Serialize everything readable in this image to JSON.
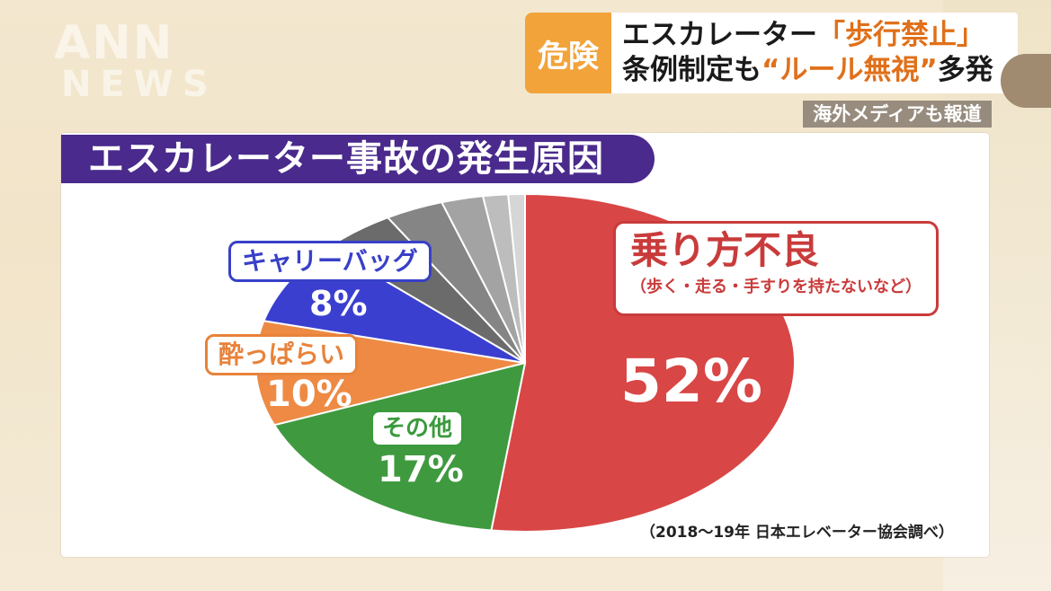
{
  "watermark": {
    "line1": "ANN",
    "line2": "NEWS"
  },
  "headline": {
    "tag": "危険",
    "line1_pre": "エスカレーター",
    "line1_accent": "「歩行禁止」",
    "line2_pre": "条例制定も",
    "line2_accent": "“ルール無視”",
    "line2_post": "多発",
    "media_badge": "海外メディアも報道"
  },
  "chart_data": {
    "type": "pie",
    "title": "エスカレーター事故の発生原因",
    "source": "（2018〜19年 日本エレベーター協会調べ）",
    "slices": [
      {
        "label": "乗り方不良",
        "sublabel": "（歩く・走る・手すりを持たないなど）",
        "value": 52,
        "value_label": "52%",
        "color": "#d94646"
      },
      {
        "label": "その他",
        "value": 17,
        "value_label": "17%",
        "color": "#3f9a3f"
      },
      {
        "label": "酔っぱらい",
        "value": 10,
        "value_label": "10%",
        "color": "#ee8a44"
      },
      {
        "label": "キャリーバッグ",
        "value": 8,
        "value_label": "8%",
        "color": "#3b3fd0"
      },
      {
        "label": "",
        "value": 4.5,
        "color": "#6b6b6b"
      },
      {
        "label": "",
        "value": 3.5,
        "color": "#858585"
      },
      {
        "label": "",
        "value": 2.5,
        "color": "#a3a3a3"
      },
      {
        "label": "",
        "value": 1.5,
        "color": "#bdbdbd"
      },
      {
        "label": "",
        "value": 1.0,
        "color": "#d6d6d6"
      }
    ]
  }
}
